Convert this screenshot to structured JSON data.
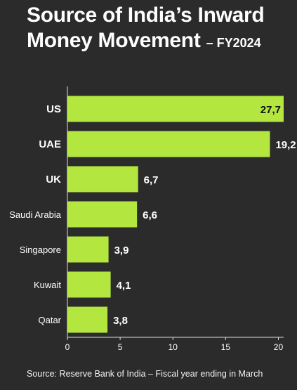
{
  "header": {
    "title_line1": "Source of India’s Inward",
    "title_line2": "Money Movement",
    "subtitle": "– FY2024"
  },
  "footer": {
    "source": "Source: Reserve Bank of India – Fiscal year ending in March"
  },
  "colors": {
    "bar": "#b3e63e",
    "background": "#2b2b2b",
    "text": "#ffffff",
    "axis": "#dddddd"
  },
  "chart_data": {
    "type": "bar",
    "orientation": "horizontal",
    "categories": [
      "US",
      "UAE",
      "UK",
      "Saudi Arabia",
      "Singapore",
      "Kuwait",
      "Qatar"
    ],
    "values": [
      27.7,
      19.2,
      6.7,
      6.6,
      3.9,
      4.1,
      3.8
    ],
    "value_labels": [
      "27,7",
      "19,2",
      "6,7",
      "6,6",
      "3,9",
      "4,1",
      "3,8"
    ],
    "bold_categories": [
      "US",
      "UAE",
      "UK"
    ],
    "xticks": [
      0,
      5,
      10,
      15,
      20
    ],
    "xlim": [
      0,
      20.5
    ],
    "grid": false
  }
}
